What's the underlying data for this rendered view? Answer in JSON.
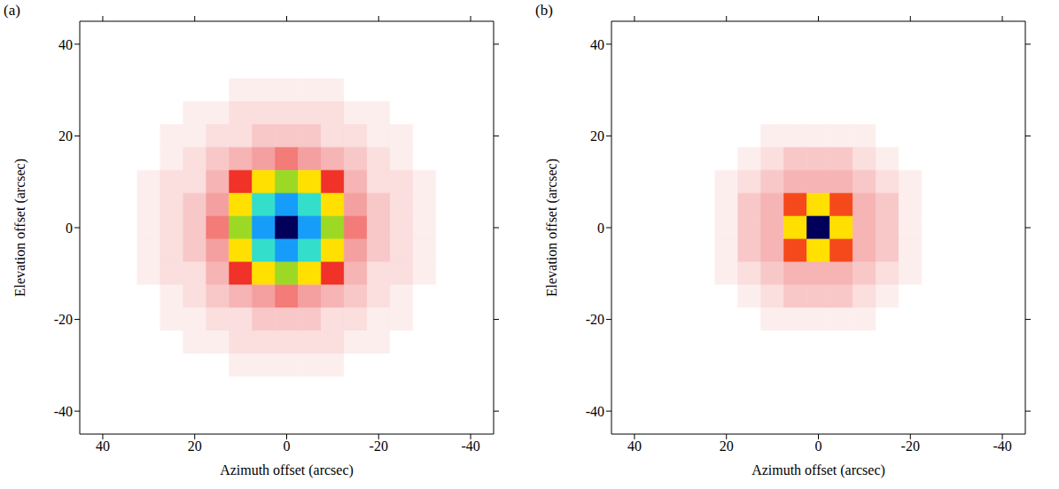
{
  "chart_data": [
    {
      "type": "heatmap",
      "panel": "(a)",
      "x_label": "Azimuth offset (arcsec)",
      "y_label": "Elevation offset (arcsec)",
      "xlim": [
        45,
        -45
      ],
      "ylim": [
        -45,
        45
      ],
      "xticks": [
        40,
        20,
        0,
        -20,
        -40
      ],
      "yticks": [
        -40,
        -20,
        0,
        20,
        40
      ],
      "zlim": [
        0,
        100
      ],
      "x": [
        40,
        35,
        30,
        25,
        20,
        15,
        10,
        5,
        0,
        -5,
        -10,
        -15,
        -20,
        -25,
        -30,
        -35,
        -40
      ],
      "y": [
        40,
        35,
        30,
        25,
        20,
        15,
        10,
        5,
        0,
        -5,
        -10,
        -15,
        -20,
        -25,
        -30,
        -35,
        -40
      ],
      "cells": [
        [
          0,
          0,
          0,
          0,
          0,
          0,
          0,
          0,
          0,
          0,
          0,
          0,
          0,
          0,
          0,
          0,
          0
        ],
        [
          0,
          0,
          0,
          0,
          0,
          0,
          0,
          0,
          0,
          0,
          0,
          0,
          0,
          0,
          0,
          0,
          0
        ],
        [
          0,
          0,
          0,
          0,
          0,
          0,
          1,
          1,
          1,
          1,
          1,
          0,
          0,
          0,
          0,
          0,
          0
        ],
        [
          0,
          0,
          0,
          0,
          1,
          1,
          2,
          2,
          2,
          2,
          2,
          1,
          1,
          0,
          0,
          0,
          0
        ],
        [
          0,
          0,
          0,
          1,
          1,
          2,
          2,
          3,
          3,
          3,
          2,
          2,
          1,
          1,
          0,
          0,
          0
        ],
        [
          0,
          0,
          0,
          1,
          2,
          3,
          4,
          5,
          6,
          5,
          4,
          3,
          2,
          1,
          0,
          0,
          0
        ],
        [
          0,
          0,
          1,
          2,
          2,
          4,
          8,
          30,
          38,
          30,
          8,
          4,
          2,
          2,
          1,
          0,
          0
        ],
        [
          0,
          0,
          1,
          2,
          3,
          5,
          30,
          58,
          72,
          58,
          30,
          5,
          3,
          2,
          1,
          0,
          0
        ],
        [
          0,
          0,
          1,
          2,
          3,
          6,
          38,
          72,
          100,
          72,
          38,
          6,
          3,
          2,
          1,
          0,
          0
        ],
        [
          0,
          0,
          1,
          2,
          3,
          5,
          30,
          58,
          72,
          58,
          30,
          5,
          3,
          2,
          1,
          0,
          0
        ],
        [
          0,
          0,
          1,
          2,
          2,
          4,
          8,
          30,
          38,
          30,
          8,
          4,
          2,
          2,
          1,
          0,
          0
        ],
        [
          0,
          0,
          0,
          1,
          2,
          3,
          4,
          5,
          6,
          5,
          4,
          3,
          2,
          1,
          0,
          0,
          0
        ],
        [
          0,
          0,
          0,
          1,
          1,
          2,
          2,
          3,
          3,
          3,
          2,
          2,
          1,
          1,
          0,
          0,
          0
        ],
        [
          0,
          0,
          0,
          0,
          1,
          1,
          2,
          2,
          2,
          2,
          2,
          1,
          1,
          0,
          0,
          0,
          0
        ],
        [
          0,
          0,
          0,
          0,
          0,
          0,
          1,
          1,
          1,
          1,
          1,
          0,
          0,
          0,
          0,
          0,
          0
        ],
        [
          0,
          0,
          0,
          0,
          0,
          0,
          0,
          0,
          0,
          0,
          0,
          0,
          0,
          0,
          0,
          0,
          0
        ],
        [
          0,
          0,
          0,
          0,
          0,
          0,
          0,
          0,
          0,
          0,
          0,
          0,
          0,
          0,
          0,
          0,
          0
        ]
      ]
    },
    {
      "type": "heatmap",
      "panel": "(b)",
      "x_label": "Azimuth offset (arcsec)",
      "y_label": "Elevation offset (arcsec)",
      "xlim": [
        45,
        -45
      ],
      "ylim": [
        -45,
        45
      ],
      "xticks": [
        40,
        20,
        0,
        -20,
        -40
      ],
      "yticks": [
        -40,
        -20,
        0,
        20,
        40
      ],
      "zlim": [
        0,
        100
      ],
      "x": [
        40,
        35,
        30,
        25,
        20,
        15,
        10,
        5,
        0,
        -5,
        -10,
        -15,
        -20,
        -25,
        -30,
        -35,
        -40
      ],
      "y": [
        40,
        35,
        30,
        25,
        20,
        15,
        10,
        5,
        0,
        -5,
        -10,
        -15,
        -20,
        -25,
        -30,
        -35,
        -40
      ],
      "cells": [
        [
          0,
          0,
          0,
          0,
          0,
          0,
          0,
          0,
          0,
          0,
          0,
          0,
          0,
          0,
          0,
          0,
          0
        ],
        [
          0,
          0,
          0,
          0,
          0,
          0,
          0,
          0,
          0,
          0,
          0,
          0,
          0,
          0,
          0,
          0,
          0
        ],
        [
          0,
          0,
          0,
          0,
          0,
          0,
          0,
          0,
          0,
          0,
          0,
          0,
          0,
          0,
          0,
          0,
          0
        ],
        [
          0,
          0,
          0,
          0,
          0,
          0,
          0,
          0,
          0,
          0,
          0,
          0,
          0,
          0,
          0,
          0,
          0
        ],
        [
          0,
          0,
          0,
          0,
          0,
          0,
          1,
          1,
          1,
          1,
          1,
          0,
          0,
          0,
          0,
          0,
          0
        ],
        [
          0,
          0,
          0,
          0,
          0,
          1,
          2,
          3,
          3,
          3,
          2,
          1,
          0,
          0,
          0,
          0,
          0
        ],
        [
          0,
          0,
          0,
          0,
          1,
          2,
          3,
          4,
          4,
          4,
          3,
          2,
          1,
          0,
          0,
          0,
          0
        ],
        [
          0,
          0,
          0,
          0,
          1,
          3,
          4,
          12,
          30,
          12,
          4,
          3,
          1,
          0,
          0,
          0,
          0
        ],
        [
          0,
          0,
          0,
          0,
          1,
          3,
          4,
          30,
          100,
          30,
          4,
          3,
          1,
          0,
          0,
          0,
          0
        ],
        [
          0,
          0,
          0,
          0,
          1,
          3,
          4,
          12,
          30,
          12,
          4,
          3,
          1,
          0,
          0,
          0,
          0
        ],
        [
          0,
          0,
          0,
          0,
          1,
          2,
          3,
          4,
          4,
          4,
          3,
          2,
          1,
          0,
          0,
          0,
          0
        ],
        [
          0,
          0,
          0,
          0,
          0,
          1,
          2,
          3,
          3,
          3,
          2,
          1,
          0,
          0,
          0,
          0,
          0
        ],
        [
          0,
          0,
          0,
          0,
          0,
          0,
          1,
          1,
          1,
          1,
          1,
          0,
          0,
          0,
          0,
          0,
          0
        ],
        [
          0,
          0,
          0,
          0,
          0,
          0,
          0,
          0,
          0,
          0,
          0,
          0,
          0,
          0,
          0,
          0,
          0
        ],
        [
          0,
          0,
          0,
          0,
          0,
          0,
          0,
          0,
          0,
          0,
          0,
          0,
          0,
          0,
          0,
          0,
          0
        ],
        [
          0,
          0,
          0,
          0,
          0,
          0,
          0,
          0,
          0,
          0,
          0,
          0,
          0,
          0,
          0,
          0,
          0
        ],
        [
          0,
          0,
          0,
          0,
          0,
          0,
          0,
          0,
          0,
          0,
          0,
          0,
          0,
          0,
          0,
          0,
          0
        ]
      ]
    }
  ]
}
